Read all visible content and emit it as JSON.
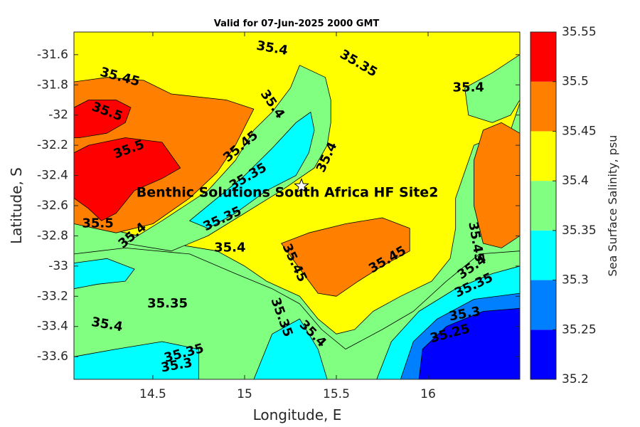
{
  "chart_data": {
    "type": "heatmap",
    "title": "Valid for 07-Jun-2025 2000 GMT",
    "xlabel": "Longitude, E",
    "ylabel": "Latitude, S",
    "xlim": [
      14.07,
      16.5
    ],
    "ylim": [
      -33.75,
      -31.45
    ],
    "x_ticks": [
      14.5,
      15,
      15.5,
      16
    ],
    "x_tick_labels": [
      "14.5",
      "15",
      "15.5",
      "16"
    ],
    "y_ticks": [
      -31.6,
      -31.8,
      -32,
      -32.2,
      -32.4,
      -32.6,
      -32.8,
      -33,
      -33.2,
      -33.4,
      -33.6
    ],
    "y_tick_labels": [
      "-31.6",
      "-31.8",
      "-32",
      "-32.2",
      "-32.4",
      "-32.6",
      "-32.8",
      "-33",
      "-33.2",
      "-33.4",
      "-33.6"
    ],
    "colorbar": {
      "label": "Sea Surface Salinity, psu",
      "levels": [
        35.2,
        35.25,
        35.3,
        35.35,
        35.4,
        35.45,
        35.5,
        35.55
      ],
      "level_labels": [
        "35.2",
        "35.25",
        "35.3",
        "35.35",
        "35.4",
        "35.45",
        "35.5",
        "35.55"
      ],
      "colors": [
        "#0000ff",
        "#0080ff",
        "#00ffff",
        "#80ff80",
        "#ffff00",
        "#ff8000",
        "#ff0000"
      ]
    },
    "regions": [
      {
        "name": "yellow-upper",
        "level": 35.4,
        "color": "#ffff00",
        "points": [
          [
            14.07,
            -31.45
          ],
          [
            16.5,
            -31.45
          ],
          [
            16.5,
            -31.92
          ],
          [
            16.45,
            -32.1
          ],
          [
            16.25,
            -32.2
          ],
          [
            16.15,
            -32.55
          ],
          [
            16.15,
            -32.75
          ],
          [
            16.12,
            -32.95
          ],
          [
            16.02,
            -33.1
          ],
          [
            15.85,
            -33.2
          ],
          [
            15.7,
            -33.3
          ],
          [
            15.6,
            -33.42
          ],
          [
            15.5,
            -33.45
          ],
          [
            15.4,
            -33.35
          ],
          [
            15.3,
            -33.2
          ],
          [
            15.12,
            -33.1
          ],
          [
            15.0,
            -33.0
          ],
          [
            14.85,
            -32.9
          ],
          [
            14.6,
            -32.85
          ],
          [
            14.35,
            -32.78
          ],
          [
            14.07,
            -32.7
          ],
          [
            14.07,
            -31.45
          ]
        ]
      },
      {
        "name": "green-upper-left",
        "level": 35.35,
        "color": "#80ff80",
        "points": [
          [
            14.35,
            -32.85
          ],
          [
            14.55,
            -32.7
          ],
          [
            14.8,
            -32.5
          ],
          [
            14.95,
            -32.3
          ],
          [
            15.05,
            -32.1
          ],
          [
            15.15,
            -31.98
          ],
          [
            15.25,
            -31.82
          ],
          [
            15.3,
            -31.67
          ],
          [
            15.44,
            -31.75
          ],
          [
            15.47,
            -31.9
          ],
          [
            15.47,
            -32.05
          ],
          [
            15.45,
            -32.2
          ],
          [
            15.38,
            -32.35
          ],
          [
            15.2,
            -32.5
          ],
          [
            15.0,
            -32.65
          ],
          [
            14.8,
            -32.8
          ],
          [
            14.6,
            -32.9
          ]
        ]
      },
      {
        "name": "cyan-diagonal",
        "level": 35.3,
        "color": "#00ffff",
        "points": [
          [
            14.7,
            -32.7
          ],
          [
            14.85,
            -32.55
          ],
          [
            15.0,
            -32.4
          ],
          [
            15.15,
            -32.22
          ],
          [
            15.28,
            -32.05
          ],
          [
            15.36,
            -31.98
          ],
          [
            15.38,
            -32.1
          ],
          [
            15.35,
            -32.25
          ],
          [
            15.28,
            -32.4
          ],
          [
            15.12,
            -32.5
          ],
          [
            14.95,
            -32.65
          ],
          [
            14.8,
            -32.75
          ]
        ]
      },
      {
        "name": "green-right",
        "level": 35.35,
        "color": "#80ff80",
        "points": [
          [
            16.5,
            -31.6
          ],
          [
            16.35,
            -31.72
          ],
          [
            16.2,
            -31.82
          ],
          [
            16.22,
            -32.0
          ],
          [
            16.35,
            -32.05
          ],
          [
            16.45,
            -32.0
          ],
          [
            16.5,
            -31.9
          ]
        ]
      },
      {
        "name": "orange-right-lobe",
        "level": 35.45,
        "color": "#ff8000",
        "points": [
          [
            16.5,
            -32.12
          ],
          [
            16.4,
            -32.05
          ],
          [
            16.3,
            -32.1
          ],
          [
            16.25,
            -32.3
          ],
          [
            16.25,
            -32.6
          ],
          [
            16.3,
            -32.85
          ],
          [
            16.4,
            -32.88
          ],
          [
            16.5,
            -32.8
          ]
        ]
      },
      {
        "name": "orange-upper-left",
        "level": 35.45,
        "color": "#ff8000",
        "points": [
          [
            14.07,
            -31.78
          ],
          [
            14.25,
            -31.75
          ],
          [
            14.45,
            -31.77
          ],
          [
            14.6,
            -31.86
          ],
          [
            14.9,
            -31.9
          ],
          [
            15.05,
            -31.96
          ],
          [
            14.95,
            -32.2
          ],
          [
            14.85,
            -32.38
          ],
          [
            14.7,
            -32.55
          ],
          [
            14.5,
            -32.72
          ],
          [
            14.3,
            -32.78
          ],
          [
            14.07,
            -32.72
          ]
        ]
      },
      {
        "name": "red-upper-left",
        "level": 35.5,
        "color": "#ff0000",
        "points": [
          [
            14.07,
            -31.95
          ],
          [
            14.15,
            -31.9
          ],
          [
            14.3,
            -31.9
          ],
          [
            14.38,
            -31.95
          ],
          [
            14.35,
            -32.05
          ],
          [
            14.25,
            -32.12
          ],
          [
            14.1,
            -32.15
          ],
          [
            14.07,
            -32.15
          ]
        ]
      },
      {
        "name": "red-middle-left",
        "level": 35.5,
        "color": "#ff0000",
        "points": [
          [
            14.07,
            -32.25
          ],
          [
            14.15,
            -32.2
          ],
          [
            14.35,
            -32.15
          ],
          [
            14.55,
            -32.18
          ],
          [
            14.65,
            -32.35
          ],
          [
            14.55,
            -32.42
          ],
          [
            14.4,
            -32.5
          ],
          [
            14.3,
            -32.65
          ],
          [
            14.22,
            -32.7
          ],
          [
            14.15,
            -32.62
          ],
          [
            14.07,
            -32.55
          ]
        ]
      },
      {
        "name": "orange-center",
        "level": 35.45,
        "color": "#ff8000",
        "points": [
          [
            15.2,
            -32.85
          ],
          [
            15.35,
            -32.78
          ],
          [
            15.55,
            -32.72
          ],
          [
            15.75,
            -32.68
          ],
          [
            15.9,
            -32.75
          ],
          [
            15.9,
            -32.9
          ],
          [
            15.75,
            -33.0
          ],
          [
            15.62,
            -33.1
          ],
          [
            15.5,
            -33.2
          ],
          [
            15.4,
            -33.18
          ],
          [
            15.32,
            -33.05
          ]
        ]
      },
      {
        "name": "green-lower",
        "level": 35.35,
        "color": "#80ff80",
        "points": [
          [
            14.07,
            -32.92
          ],
          [
            14.35,
            -32.88
          ],
          [
            14.7,
            -32.92
          ],
          [
            14.95,
            -33.05
          ],
          [
            15.15,
            -33.15
          ],
          [
            15.3,
            -33.25
          ],
          [
            15.42,
            -33.42
          ],
          [
            15.55,
            -33.55
          ],
          [
            15.75,
            -33.42
          ],
          [
            15.92,
            -33.3
          ],
          [
            16.1,
            -33.1
          ],
          [
            16.28,
            -32.92
          ],
          [
            16.5,
            -32.9
          ],
          [
            16.5,
            -33.75
          ],
          [
            14.07,
            -33.75
          ]
        ]
      },
      {
        "name": "cyan-lower-left",
        "level": 35.3,
        "color": "#00ffff",
        "points": [
          [
            14.07,
            -32.98
          ],
          [
            14.25,
            -32.95
          ],
          [
            14.4,
            -33.02
          ],
          [
            14.35,
            -33.1
          ],
          [
            14.2,
            -33.12
          ],
          [
            14.07,
            -33.15
          ]
        ]
      },
      {
        "name": "cyan-lower-center",
        "level": 35.3,
        "color": "#00ffff",
        "points": [
          [
            14.07,
            -33.6
          ],
          [
            14.3,
            -33.55
          ],
          [
            14.55,
            -33.5
          ],
          [
            14.75,
            -33.55
          ],
          [
            14.75,
            -33.75
          ],
          [
            14.07,
            -33.75
          ]
        ]
      },
      {
        "name": "cyan-lower-mid",
        "level": 35.3,
        "color": "#00ffff",
        "points": [
          [
            15.05,
            -33.75
          ],
          [
            15.15,
            -33.45
          ],
          [
            15.3,
            -33.35
          ],
          [
            15.4,
            -33.55
          ],
          [
            15.45,
            -33.75
          ]
        ]
      },
      {
        "name": "cyan-lower-right",
        "level": 35.3,
        "color": "#00ffff",
        "points": [
          [
            15.72,
            -33.75
          ],
          [
            15.8,
            -33.5
          ],
          [
            15.95,
            -33.3
          ],
          [
            16.15,
            -33.15
          ],
          [
            16.35,
            -33.05
          ],
          [
            16.5,
            -33.0
          ],
          [
            16.5,
            -33.75
          ]
        ]
      },
      {
        "name": "mid-blue-lower-right",
        "level": 35.25,
        "color": "#0080ff",
        "points": [
          [
            15.85,
            -33.75
          ],
          [
            15.92,
            -33.5
          ],
          [
            16.05,
            -33.35
          ],
          [
            16.25,
            -33.22
          ],
          [
            16.5,
            -33.18
          ],
          [
            16.5,
            -33.75
          ]
        ]
      },
      {
        "name": "blue-lower-right",
        "level": 35.2,
        "color": "#0000ff",
        "points": [
          [
            15.95,
            -33.75
          ],
          [
            15.97,
            -33.55
          ],
          [
            16.1,
            -33.4
          ],
          [
            16.3,
            -33.3
          ],
          [
            16.5,
            -33.28
          ],
          [
            16.5,
            -33.75
          ]
        ]
      }
    ],
    "contour_labels": [
      {
        "text": "35.4",
        "x": 15.15,
        "y": -31.56,
        "angle": 10
      },
      {
        "text": "35.35",
        "x": 15.62,
        "y": -31.66,
        "angle": 30
      },
      {
        "text": "35.45",
        "x": 14.32,
        "y": -31.75,
        "angle": 15
      },
      {
        "text": "35.4",
        "x": 15.15,
        "y": -31.93,
        "angle": 55
      },
      {
        "text": "35.4",
        "x": 16.22,
        "y": -31.82,
        "angle": 0
      },
      {
        "text": "35.5",
        "x": 14.25,
        "y": -31.98,
        "angle": 20
      },
      {
        "text": "35.45",
        "x": 14.98,
        "y": -32.21,
        "angle": -40
      },
      {
        "text": "35.5",
        "x": 14.37,
        "y": -32.23,
        "angle": -20
      },
      {
        "text": "35.4",
        "x": 15.45,
        "y": -32.28,
        "angle": -65
      },
      {
        "text": "35.35",
        "x": 15.02,
        "y": -32.41,
        "angle": -30
      },
      {
        "text": "35.35",
        "x": 14.88,
        "y": -32.69,
        "angle": -25
      },
      {
        "text": "35.5",
        "x": 14.2,
        "y": -32.72,
        "angle": 0
      },
      {
        "text": "35.4",
        "x": 14.39,
        "y": -32.8,
        "angle": -40
      },
      {
        "text": "35.4",
        "x": 14.92,
        "y": -32.88,
        "angle": 0
      },
      {
        "text": "35.45",
        "x": 15.27,
        "y": -32.98,
        "angle": 65
      },
      {
        "text": "35.45",
        "x": 15.78,
        "y": -32.96,
        "angle": -30
      },
      {
        "text": "35.45",
        "x": 16.26,
        "y": -32.84,
        "angle": 80
      },
      {
        "text": "35.4",
        "x": 16.24,
        "y": -33.01,
        "angle": -35
      },
      {
        "text": "35.35",
        "x": 16.25,
        "y": -33.13,
        "angle": -25
      },
      {
        "text": "35.35",
        "x": 14.58,
        "y": -33.25,
        "angle": 0
      },
      {
        "text": "35.4",
        "x": 14.25,
        "y": -33.39,
        "angle": 10
      },
      {
        "text": "35.35",
        "x": 15.2,
        "y": -33.34,
        "angle": 70
      },
      {
        "text": "35.4",
        "x": 15.37,
        "y": -33.45,
        "angle": 45
      },
      {
        "text": "35.3",
        "x": 16.2,
        "y": -33.32,
        "angle": -10
      },
      {
        "text": "35.25",
        "x": 16.12,
        "y": -33.45,
        "angle": -15
      },
      {
        "text": "35.35",
        "x": 14.67,
        "y": -33.58,
        "angle": -15
      },
      {
        "text": "35.3",
        "x": 14.63,
        "y": -33.66,
        "angle": -10
      }
    ],
    "site": {
      "label": "Benthic Solutions South Africa HF Site2",
      "lon": 15.31,
      "lat": -32.47,
      "label_lon": 14.41,
      "label_lat": -32.54
    }
  }
}
